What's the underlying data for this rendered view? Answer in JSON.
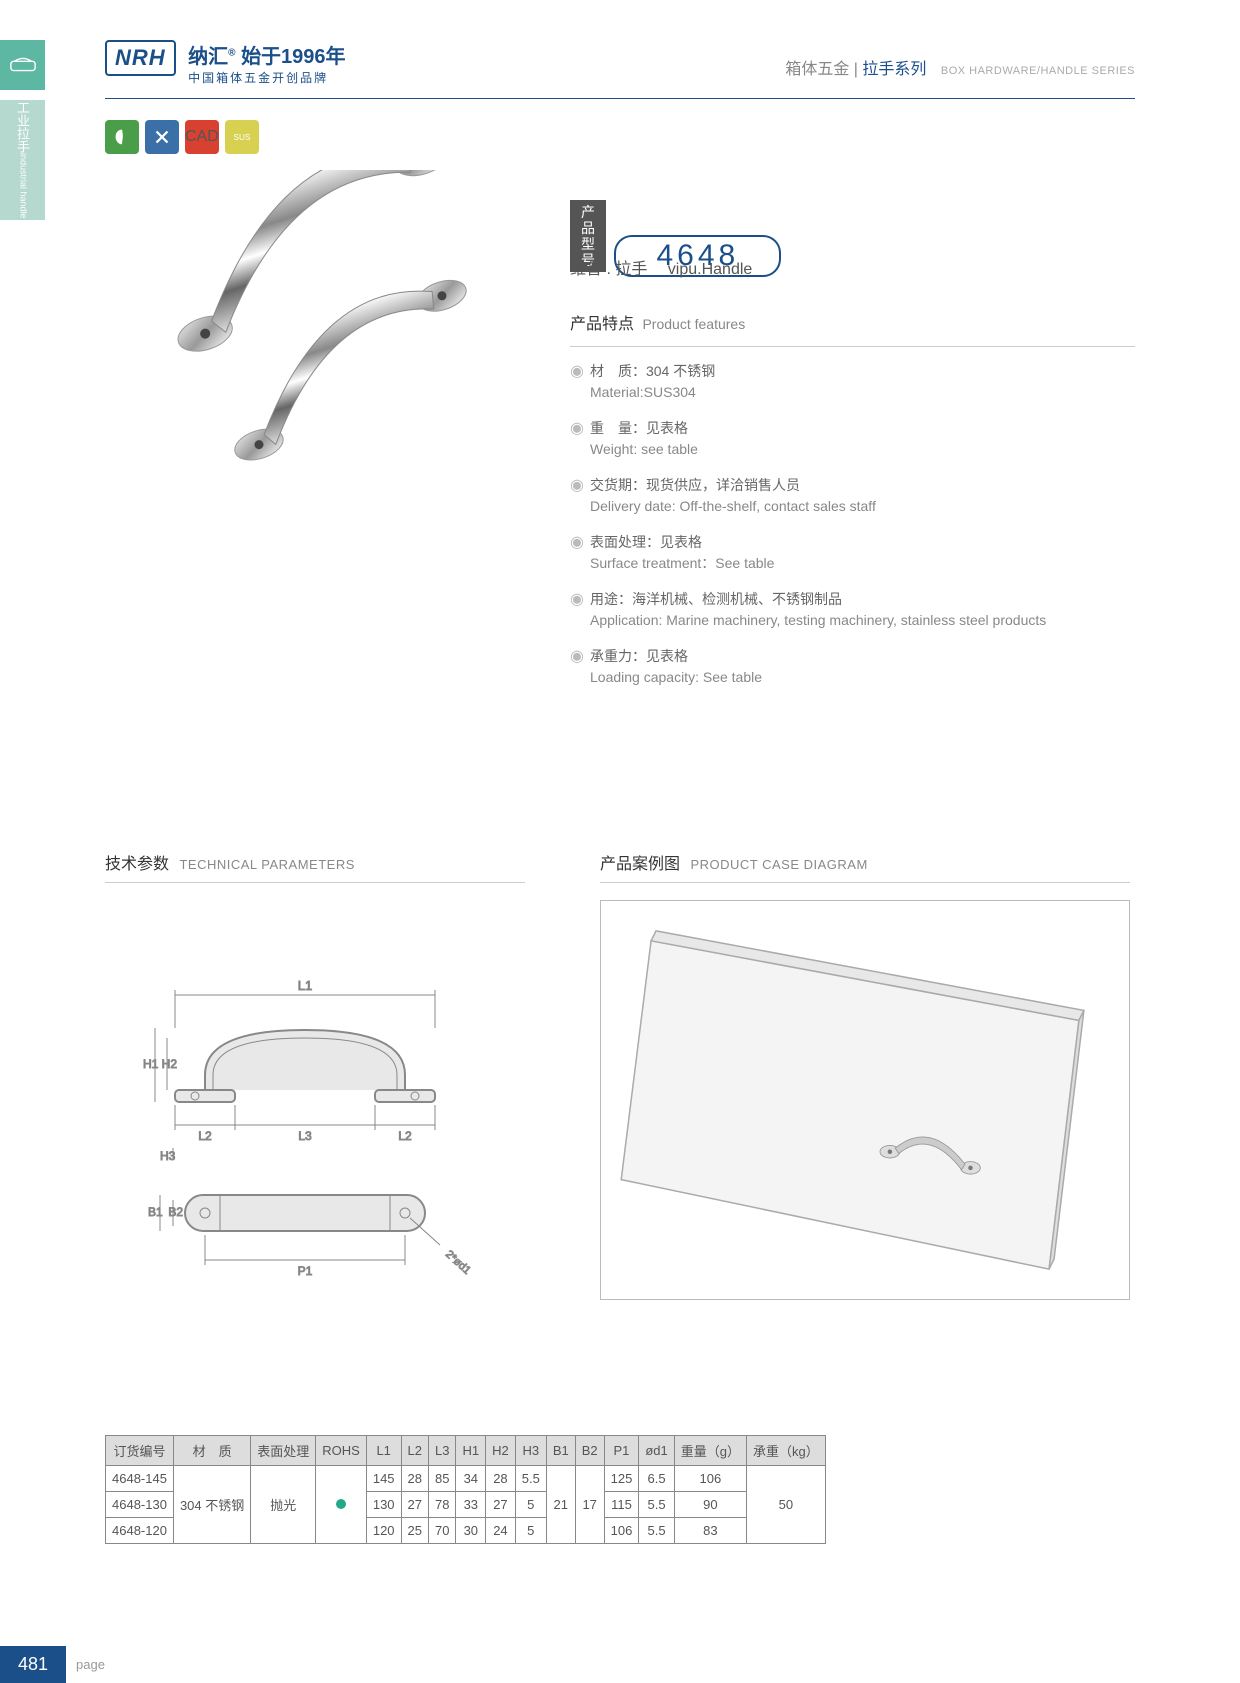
{
  "header": {
    "logo_text": "NRH",
    "brand_cn": "纳汇",
    "brand_year": "始于1996年",
    "brand_tagline": "中国箱体五金开创品牌",
    "category_cn": "箱体五金",
    "category_sub": "拉手系列",
    "category_en": "BOX HARDWARE/HANDLE SERIES"
  },
  "side": {
    "label_cn": "工业拉手",
    "label_en": "industrial handle"
  },
  "badges": {
    "colors": [
      "#4a9e4a",
      "#3a6fa8",
      "#d84030",
      "#d8d050"
    ],
    "labels": [
      "eco",
      "tools",
      "CAD",
      "SUS"
    ]
  },
  "model": {
    "label_cn1": "产品",
    "label_cn2": "型号",
    "number": "4648",
    "subtitle_cn": "维普 . 拉手",
    "subtitle_en": "vipu.Handle"
  },
  "features": {
    "title_cn": "产品特点",
    "title_en": "Product features",
    "items": [
      {
        "cn": "材　质：304 不锈钢",
        "en": "Material:SUS304"
      },
      {
        "cn": "重　量：见表格",
        "en": "Weight: see table"
      },
      {
        "cn": "交货期：现货供应，详洽销售人员",
        "en": "Delivery date: Off-the-shelf, contact sales staff"
      },
      {
        "cn": "表面处理：见表格",
        "en": "Surface treatment：See table"
      },
      {
        "cn": "用途：海洋机械、检测机械、不锈钢制品",
        "en": "Application: Marine machinery, testing machinery, stainless steel products"
      },
      {
        "cn": "承重力：见表格",
        "en": "Loading capacity: See table"
      }
    ]
  },
  "tech": {
    "title_cn": "技术参数",
    "title_en": "TECHNICAL PARAMETERS",
    "dims": [
      "L1",
      "L2",
      "L3",
      "H1",
      "H2",
      "H3",
      "B1",
      "B2",
      "P1",
      "2*ød1"
    ]
  },
  "case": {
    "title_cn": "产品案例图",
    "title_en": "PRODUCT CASE DIAGRAM"
  },
  "table": {
    "columns": [
      "订货编号",
      "材　质",
      "表面处理",
      "ROHS",
      "L1",
      "L2",
      "L3",
      "H1",
      "H2",
      "H3",
      "B1",
      "B2",
      "P1",
      "ød1",
      "重量（g）",
      "承重（kg）"
    ],
    "material": "304 不锈钢",
    "surface": "抛光",
    "rows": [
      {
        "id": "4648-145",
        "L1": "145",
        "L2": "28",
        "L3": "85",
        "H1": "34",
        "H2": "28",
        "H3": "5.5",
        "P1": "125",
        "d1": "6.5",
        "weight": "106"
      },
      {
        "id": "4648-130",
        "L1": "130",
        "L2": "27",
        "L3": "78",
        "H1": "33",
        "H2": "27",
        "H3": "5",
        "P1": "115",
        "d1": "5.5",
        "weight": "90"
      },
      {
        "id": "4648-120",
        "L1": "120",
        "L2": "25",
        "L3": "70",
        "H1": "30",
        "H2": "24",
        "H3": "5",
        "P1": "106",
        "d1": "5.5",
        "weight": "83"
      }
    ],
    "B1": "21",
    "B2": "17",
    "capacity": "50"
  },
  "footer": {
    "page_num": "481",
    "page_label": "page"
  },
  "colors": {
    "primary": "#1a4f8a",
    "teal": "#5cb7a3",
    "teal_light": "#b5d8cf",
    "text": "#555",
    "text_light": "#888",
    "border": "#888",
    "th_bg": "#ddd"
  }
}
